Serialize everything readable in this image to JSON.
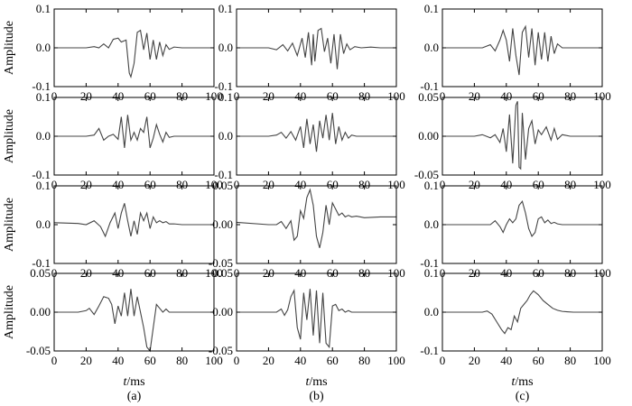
{
  "chart_data": {
    "type": "line",
    "layout": {
      "rows": 4,
      "cols": 3
    },
    "x_ticks": [
      0,
      20,
      40,
      60,
      80,
      100
    ],
    "xlim": [
      0,
      100
    ],
    "ylabel": "Amplitude",
    "xlabel_italic": "t",
    "xlabel_unit": "/ms",
    "column_labels": [
      "(a)",
      "(b)",
      "(c)"
    ],
    "grid": false,
    "panels": [
      {
        "id": "r1c1",
        "ylim": [
          -0.1,
          0.1
        ],
        "y_ticks": [
          "0.1",
          "0.0",
          "-0.1"
        ],
        "x": [
          0,
          20,
          25,
          28,
          31,
          34,
          37,
          40,
          42,
          45,
          47,
          48,
          50,
          52,
          54,
          56,
          58,
          60,
          62,
          64,
          66,
          68,
          70,
          72,
          75,
          80,
          90,
          100
        ],
        "y": [
          0,
          0,
          0.003,
          0,
          0.01,
          0,
          0.022,
          0.025,
          0.015,
          0.02,
          -0.065,
          -0.075,
          -0.04,
          0.04,
          0.045,
          -0.005,
          0.038,
          -0.03,
          0.02,
          -0.03,
          0.015,
          -0.02,
          0.008,
          -0.004,
          0.002,
          0,
          0,
          0
        ]
      },
      {
        "id": "r1c2",
        "ylim": [
          -0.1,
          0.1
        ],
        "y_ticks": [
          "0.1",
          "0.0",
          "-0.1"
        ],
        "x": [
          0,
          20,
          25,
          29,
          32,
          35,
          38,
          41,
          43,
          45,
          47,
          48,
          49,
          51,
          53,
          55,
          57,
          59,
          61,
          63,
          65,
          67,
          69,
          71,
          74,
          78,
          84,
          90,
          100
        ],
        "y": [
          0,
          0,
          -0.005,
          0.008,
          -0.008,
          0.012,
          -0.02,
          0.025,
          -0.025,
          0.04,
          -0.045,
          0.035,
          -0.035,
          0.045,
          0.05,
          -0.01,
          0.025,
          -0.04,
          0.035,
          -0.055,
          0.035,
          -0.015,
          0.01,
          -0.005,
          0.003,
          0,
          0.002,
          0,
          0
        ]
      },
      {
        "id": "r1c3",
        "ylim": [
          -0.1,
          0.1
        ],
        "y_ticks": [
          "0.1",
          "0.0",
          "-0.1"
        ],
        "x": [
          0,
          25,
          30,
          33,
          36,
          38,
          40,
          42,
          44,
          46,
          48,
          50,
          52,
          54,
          56,
          58,
          60,
          62,
          64,
          66,
          68,
          70,
          72,
          75,
          80,
          90,
          100
        ],
        "y": [
          0,
          0,
          0.008,
          -0.008,
          0.02,
          0.045,
          0.02,
          -0.035,
          0.05,
          -0.02,
          -0.07,
          0.04,
          0.055,
          -0.025,
          0.05,
          -0.045,
          0.04,
          -0.03,
          0.04,
          -0.035,
          0.03,
          -0.015,
          0.01,
          0,
          0,
          0,
          0
        ]
      },
      {
        "id": "r2c1",
        "ylim": [
          -0.1,
          0.1
        ],
        "y_ticks": [
          "0.1",
          "0.0",
          "-0.1"
        ],
        "x": [
          0,
          20,
          25,
          28,
          31,
          34,
          37,
          40,
          42,
          44,
          46,
          48,
          50,
          52,
          54,
          56,
          58,
          60,
          62,
          64,
          66,
          68,
          70,
          72,
          75,
          80,
          90,
          100
        ],
        "y": [
          0,
          0,
          0.003,
          0.02,
          -0.01,
          0,
          0.005,
          -0.008,
          0.05,
          -0.03,
          0.055,
          -0.01,
          0.01,
          -0.01,
          0.02,
          0.01,
          0.05,
          -0.03,
          -0.005,
          0.03,
          0.005,
          -0.015,
          0.01,
          -0.003,
          0,
          0,
          0,
          0
        ]
      },
      {
        "id": "r2c2",
        "ylim": [
          -0.1,
          0.1
        ],
        "y_ticks": [
          "0.1",
          "0.0",
          "-0.1"
        ],
        "x": [
          0,
          20,
          25,
          28,
          31,
          34,
          37,
          40,
          42,
          44,
          46,
          48,
          50,
          52,
          54,
          56,
          58,
          60,
          62,
          64,
          66,
          68,
          70,
          72,
          75,
          80,
          90,
          100
        ],
        "y": [
          0,
          0,
          0.003,
          0.01,
          -0.005,
          0.012,
          -0.01,
          0.025,
          -0.03,
          0.045,
          -0.02,
          0.03,
          -0.04,
          0.04,
          -0.005,
          0.055,
          -0.01,
          0.06,
          -0.02,
          0.025,
          -0.01,
          0.01,
          -0.005,
          0.003,
          0,
          0,
          0,
          0
        ]
      },
      {
        "id": "r2c3",
        "ylim": [
          -0.05,
          0.05
        ],
        "y_ticks": [
          "0.05",
          "0.00",
          "-0.05"
        ],
        "x": [
          0,
          20,
          25,
          30,
          33,
          36,
          38,
          40,
          42,
          44,
          46,
          47,
          48,
          49,
          50,
          52,
          54,
          56,
          58,
          60,
          62,
          65,
          68,
          70,
          72,
          75,
          80,
          90,
          100
        ],
        "y": [
          0,
          0,
          0.002,
          -0.002,
          0.002,
          -0.008,
          0.01,
          -0.02,
          0.028,
          -0.035,
          0.04,
          0.045,
          -0.04,
          -0.042,
          0.03,
          -0.03,
          0.01,
          0.02,
          -0.01,
          0.008,
          0.002,
          0.012,
          -0.005,
          0.01,
          -0.004,
          0.002,
          0,
          0,
          0
        ]
      },
      {
        "id": "r3c1",
        "ylim": [
          -0.1,
          0.1
        ],
        "y_ticks": [
          "0.1",
          "0.0",
          "-0.1"
        ],
        "x": [
          0,
          15,
          20,
          25,
          29,
          32,
          35,
          38,
          40,
          42,
          44,
          46,
          48,
          50,
          52,
          54,
          56,
          58,
          60,
          62,
          64,
          66,
          68,
          70,
          72,
          75,
          80,
          90,
          100
        ],
        "y": [
          0.005,
          0.003,
          0,
          0.01,
          -0.005,
          -0.03,
          0.005,
          0.03,
          -0.01,
          0.03,
          0.055,
          0.01,
          -0.03,
          0.01,
          -0.025,
          0.03,
          0.01,
          0.03,
          -0.01,
          0.02,
          0.005,
          0.01,
          0.005,
          0.008,
          0.002,
          0.002,
          0,
          0,
          0
        ]
      },
      {
        "id": "r3c2",
        "ylim": [
          -0.05,
          0.05
        ],
        "y_ticks": [
          "0.05",
          "0.00",
          "-0.05"
        ],
        "x": [
          0,
          20,
          25,
          28,
          31,
          34,
          36,
          38,
          40,
          42,
          44,
          46,
          48,
          50,
          52,
          54,
          56,
          58,
          60,
          62,
          64,
          66,
          68,
          70,
          72,
          75,
          80,
          90,
          100
        ],
        "y": [
          0.003,
          0,
          0,
          0.004,
          -0.005,
          0.005,
          -0.02,
          -0.015,
          0.018,
          0.008,
          0.035,
          0.045,
          0.025,
          -0.015,
          -0.03,
          -0.01,
          0.025,
          0,
          0.028,
          0.02,
          0.012,
          0.015,
          0.01,
          0.012,
          0.01,
          0.011,
          0.009,
          0.01,
          0.01
        ]
      },
      {
        "id": "r3c3",
        "ylim": [
          -0.1,
          0.1
        ],
        "y_ticks": [
          "0.1",
          "0.0",
          "-0.1"
        ],
        "x": [
          0,
          20,
          25,
          30,
          33,
          36,
          38,
          40,
          42,
          44,
          46,
          48,
          50,
          52,
          54,
          56,
          58,
          60,
          62,
          64,
          66,
          68,
          70,
          72,
          75,
          80,
          90,
          100
        ],
        "y": [
          0,
          0,
          0,
          0,
          0.01,
          -0.005,
          -0.02,
          0,
          0.015,
          0.005,
          0.015,
          0.05,
          0.06,
          0.03,
          -0.01,
          -0.03,
          -0.02,
          0.015,
          0.02,
          0.005,
          0.012,
          0.003,
          0.006,
          0.002,
          0,
          0,
          0,
          0
        ]
      },
      {
        "id": "r4c1",
        "ylim": [
          -0.05,
          0.05
        ],
        "y_ticks": [
          "0.05",
          "0.00",
          "-0.05"
        ],
        "x": [
          0,
          15,
          20,
          22,
          25,
          28,
          31,
          34,
          36,
          38,
          40,
          42,
          44,
          46,
          48,
          50,
          52,
          54,
          56,
          58,
          60,
          62,
          64,
          66,
          68,
          70,
          72,
          75,
          80,
          90,
          100
        ],
        "y": [
          0,
          0,
          0.002,
          0.005,
          -0.003,
          0.008,
          0.02,
          0.018,
          0.01,
          -0.015,
          0.008,
          -0.005,
          0.025,
          -0.005,
          0.03,
          -0.005,
          0.02,
          0,
          -0.02,
          -0.045,
          -0.05,
          -0.02,
          0.01,
          0.005,
          0,
          0.004,
          0,
          0,
          0,
          0,
          0
        ]
      },
      {
        "id": "r4c2",
        "ylim": [
          -0.05,
          0.05
        ],
        "y_ticks": [
          "0.05",
          "0.00",
          "-0.05"
        ],
        "x": [
          0,
          20,
          25,
          28,
          30,
          32,
          34,
          36,
          38,
          40,
          42,
          44,
          46,
          48,
          50,
          52,
          54,
          56,
          58,
          60,
          62,
          64,
          66,
          68,
          70,
          72,
          75,
          80,
          90,
          100
        ],
        "y": [
          0,
          0,
          0,
          0.004,
          -0.004,
          0.003,
          0.02,
          0.028,
          -0.02,
          -0.035,
          0.025,
          -0.01,
          0.03,
          -0.03,
          0.028,
          -0.04,
          0.025,
          -0.04,
          -0.045,
          0.008,
          0.01,
          0.002,
          0.004,
          0,
          0.002,
          0,
          0,
          0,
          0,
          0
        ]
      },
      {
        "id": "r4c3",
        "ylim": [
          -0.1,
          0.1
        ],
        "y_ticks": [
          "0.1",
          "0.0",
          "-0.1"
        ],
        "x": [
          0,
          20,
          25,
          28,
          31,
          34,
          37,
          39,
          41,
          43,
          45,
          47,
          49,
          51,
          53,
          55,
          57,
          60,
          63,
          66,
          69,
          72,
          75,
          78,
          82,
          90,
          100
        ],
        "y": [
          0,
          0,
          0,
          0.003,
          -0.005,
          -0.025,
          -0.045,
          -0.055,
          -0.04,
          -0.045,
          -0.01,
          -0.025,
          0.01,
          0.02,
          0.03,
          0.045,
          0.055,
          0.045,
          0.03,
          0.02,
          0.01,
          0.005,
          0.002,
          0.001,
          0,
          0,
          0
        ]
      }
    ]
  }
}
